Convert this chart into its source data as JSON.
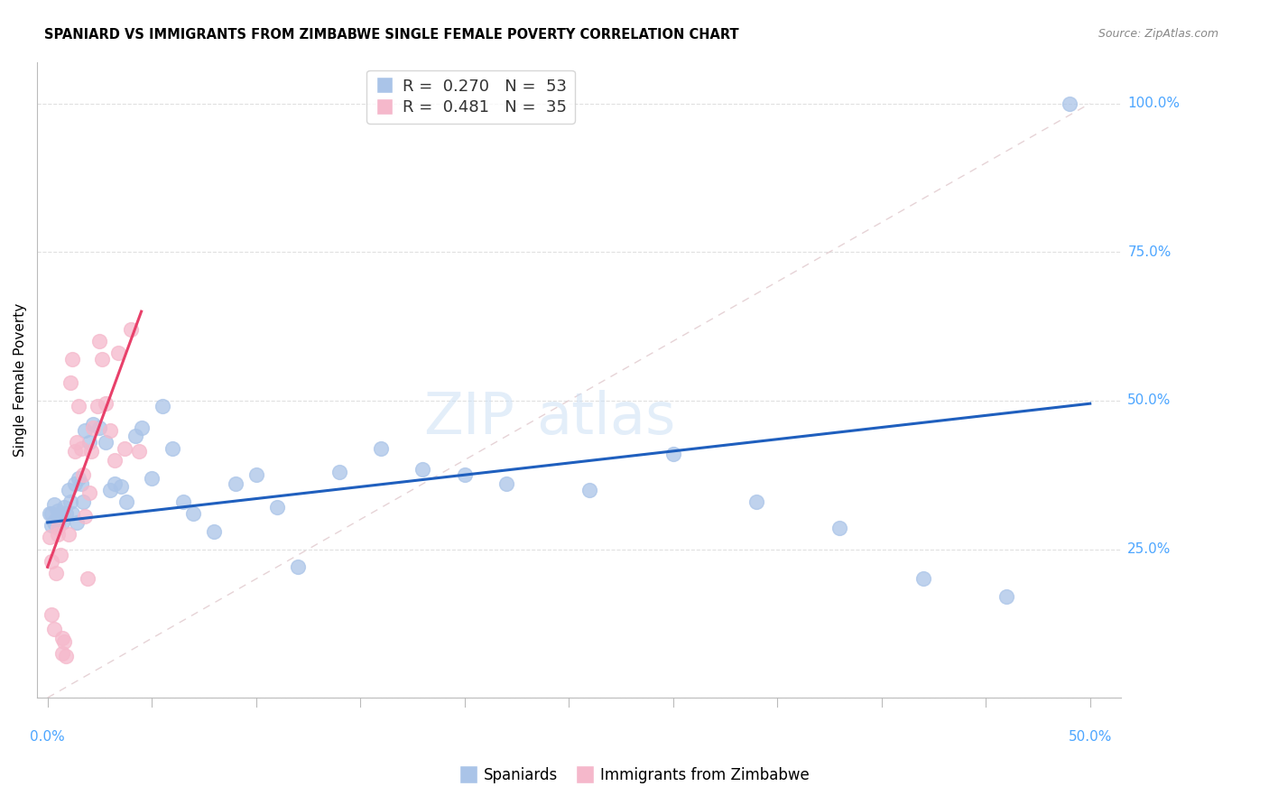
{
  "title": "SPANIARD VS IMMIGRANTS FROM ZIMBABWE SINGLE FEMALE POVERTY CORRELATION CHART",
  "source": "Source: ZipAtlas.com",
  "ylabel": "Single Female Poverty",
  "spaniards_color": "#aac4e8",
  "zimbabwe_color": "#f5b8cb",
  "trend_spaniards_color": "#1f5fbe",
  "trend_zimbabwe_color": "#e8406a",
  "diagonal_color": "#d8d8d8",
  "spaniards_x": [
    0.001,
    0.002,
    0.002,
    0.003,
    0.003,
    0.004,
    0.005,
    0.005,
    0.006,
    0.007,
    0.008,
    0.009,
    0.01,
    0.011,
    0.012,
    0.013,
    0.014,
    0.015,
    0.016,
    0.017,
    0.018,
    0.02,
    0.022,
    0.025,
    0.028,
    0.03,
    0.032,
    0.035,
    0.038,
    0.042,
    0.045,
    0.05,
    0.055,
    0.06,
    0.065,
    0.07,
    0.08,
    0.09,
    0.1,
    0.11,
    0.12,
    0.14,
    0.16,
    0.18,
    0.2,
    0.22,
    0.26,
    0.3,
    0.34,
    0.38,
    0.42,
    0.46,
    0.49
  ],
  "spaniards_y": [
    0.31,
    0.29,
    0.31,
    0.325,
    0.295,
    0.3,
    0.315,
    0.29,
    0.305,
    0.295,
    0.32,
    0.31,
    0.35,
    0.33,
    0.31,
    0.36,
    0.295,
    0.37,
    0.36,
    0.33,
    0.45,
    0.43,
    0.46,
    0.455,
    0.43,
    0.35,
    0.36,
    0.355,
    0.33,
    0.44,
    0.455,
    0.37,
    0.49,
    0.42,
    0.33,
    0.31,
    0.28,
    0.36,
    0.375,
    0.32,
    0.22,
    0.38,
    0.42,
    0.385,
    0.375,
    0.36,
    0.35,
    0.41,
    0.33,
    0.285,
    0.2,
    0.17,
    1.0
  ],
  "zimbabwe_x": [
    0.001,
    0.002,
    0.002,
    0.003,
    0.004,
    0.005,
    0.005,
    0.006,
    0.007,
    0.007,
    0.008,
    0.009,
    0.01,
    0.011,
    0.012,
    0.013,
    0.014,
    0.015,
    0.016,
    0.017,
    0.018,
    0.019,
    0.02,
    0.021,
    0.022,
    0.024,
    0.025,
    0.026,
    0.028,
    0.03,
    0.032,
    0.034,
    0.037,
    0.04,
    0.044
  ],
  "zimbabwe_y": [
    0.27,
    0.23,
    0.14,
    0.115,
    0.21,
    0.285,
    0.275,
    0.24,
    0.1,
    0.075,
    0.095,
    0.07,
    0.275,
    0.53,
    0.57,
    0.415,
    0.43,
    0.49,
    0.42,
    0.375,
    0.305,
    0.2,
    0.345,
    0.415,
    0.455,
    0.49,
    0.6,
    0.57,
    0.495,
    0.45,
    0.4,
    0.58,
    0.42,
    0.62,
    0.415
  ],
  "blue_trend_x0": 0.0,
  "blue_trend_y0": 0.295,
  "blue_trend_x1": 0.5,
  "blue_trend_y1": 0.495,
  "pink_trend_x0": 0.0,
  "pink_trend_y0": 0.22,
  "pink_trend_x1": 0.045,
  "pink_trend_y1": 0.65,
  "xmin": -0.005,
  "xmax": 0.515,
  "ymin": 0.0,
  "ymax": 1.07
}
